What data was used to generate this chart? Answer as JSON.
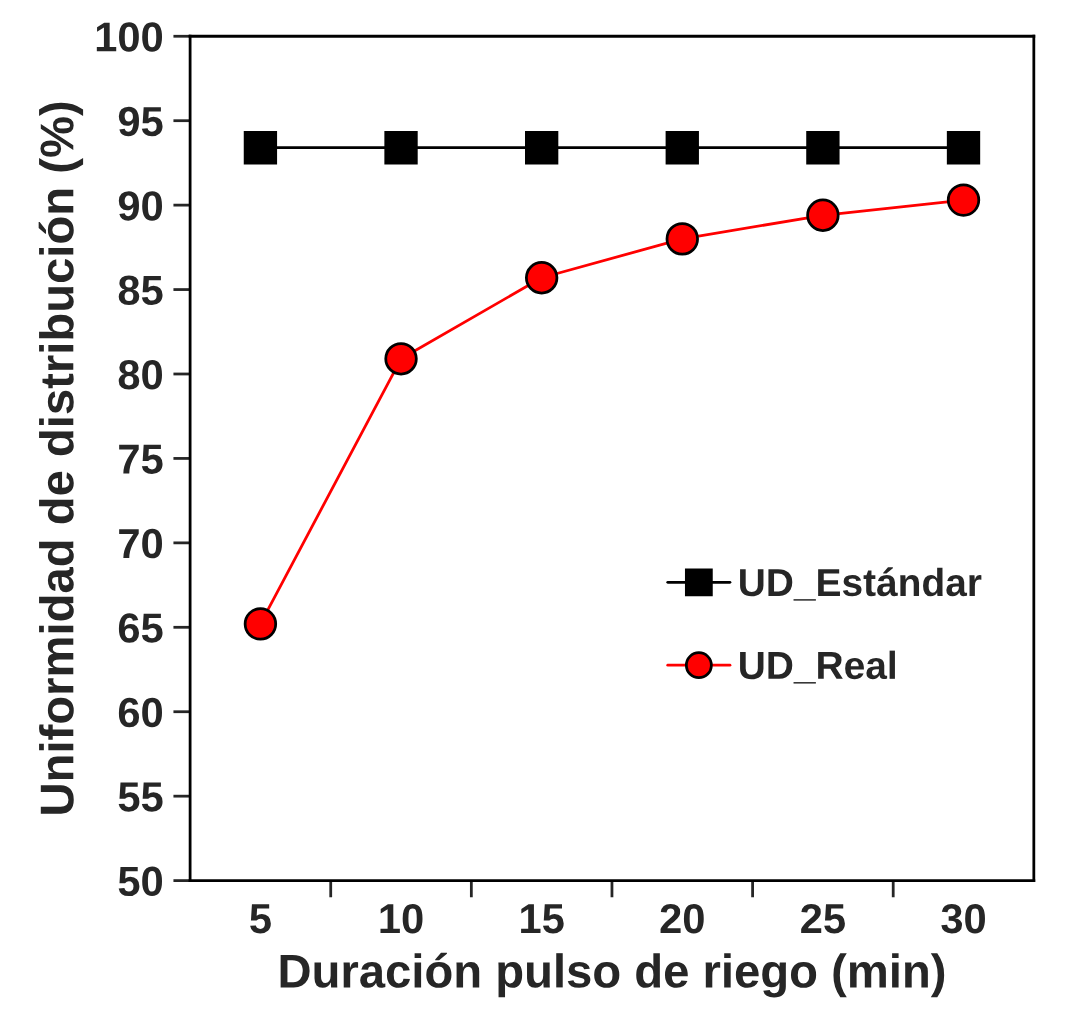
{
  "chart_data": {
    "type": "line",
    "categories": [
      "5",
      "10",
      "15",
      "20",
      "25",
      "30"
    ],
    "xlabel": "Duración pulso de riego (min)",
    "ylabel": "Uniformidad de distribución (%)",
    "ylim": [
      50,
      100
    ],
    "yticks": [
      50,
      55,
      60,
      65,
      70,
      75,
      80,
      85,
      90,
      95,
      100
    ],
    "grid": false,
    "legend": "right",
    "series": [
      {
        "name": "UD_Estándar",
        "color": "#000000",
        "marker": "square",
        "values": [
          93.4,
          93.4,
          93.4,
          93.4,
          93.4,
          93.4
        ]
      },
      {
        "name": "UD_Real",
        "color": "#ff0000",
        "marker": "circle",
        "values": [
          65.2,
          80.9,
          85.7,
          88.0,
          89.4,
          90.3
        ]
      }
    ]
  }
}
